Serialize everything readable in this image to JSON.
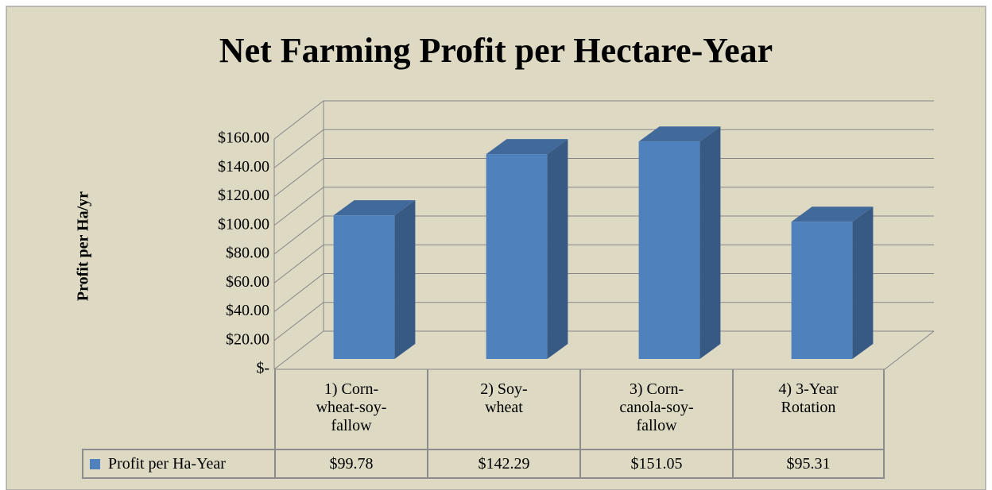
{
  "chart_data": {
    "type": "bar3d",
    "title": "Net Farming Profit per Hectare-Year",
    "y_axis_label": "Profit per Ha/yr",
    "categories": [
      "1) Corn-wheat-soy-fallow",
      "2) Soy-wheat",
      "3) Corn-canola-soy-fallow",
      "4) 3-Year Rotation"
    ],
    "series": [
      {
        "name": "Profit per Ha-Year",
        "color": "#4f81bd",
        "values": [
          99.78,
          142.29,
          151.05,
          95.31
        ],
        "value_labels": [
          "$99.78",
          "$142.29",
          "$151.05",
          "$95.31"
        ]
      }
    ],
    "ylim": [
      0,
      160
    ],
    "yticks": [
      {
        "value": 0,
        "label": "$-"
      },
      {
        "value": 20,
        "label": "$20.00"
      },
      {
        "value": 40,
        "label": "$40.00"
      },
      {
        "value": 60,
        "label": "$60.00"
      },
      {
        "value": 80,
        "label": "$80.00"
      },
      {
        "value": 100,
        "label": "$100.00"
      },
      {
        "value": 120,
        "label": "$120.00"
      },
      {
        "value": 140,
        "label": "$140.00"
      },
      {
        "value": 160,
        "label": "$160.00"
      }
    ],
    "grid": true
  }
}
